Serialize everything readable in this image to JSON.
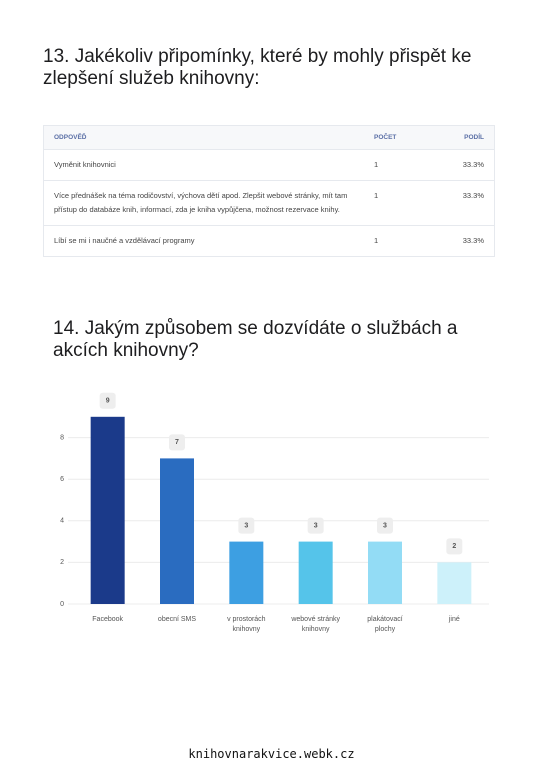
{
  "section13": {
    "title": "13. Jakékoliv připomínky, které by mohly přispět ke zlepšení služeb knihovny:",
    "table": {
      "columns": [
        "ODPOVĚĎ",
        "POČET",
        "PODÍL"
      ],
      "rows": [
        [
          "Vyměnit knihovnici",
          1,
          "33.3%"
        ],
        [
          "Více přednášek na téma rodičovství, výchova dětí apod. Zlepšit webové stránky, mít tam přístup do databáze knih, informací, zda je kniha vypůjčena, možnost rezervace knihy.",
          1,
          "33.3%"
        ],
        [
          "Líbí se mi i naučné a vzdělávací programy",
          1,
          "33.3%"
        ]
      ]
    }
  },
  "chart_data": {
    "type": "bar",
    "title": "14. Jakým způsobem se dozvídáte o službách a akcích knihovny?",
    "categories": [
      "Facebook",
      "obecní SMS",
      "v prostorách knihovny",
      "webové stránky knihovny",
      "plakátovací plochy",
      "jiné"
    ],
    "values": [
      9,
      7,
      3,
      3,
      3,
      2
    ],
    "colors": [
      "#1b3a8a",
      "#2a6cc0",
      "#3d9fe2",
      "#55c4ea",
      "#93dcf5",
      "#cdf1fa"
    ],
    "ylim": [
      0,
      10
    ],
    "yticks": [
      0,
      2,
      4,
      6,
      8
    ],
    "grid": true
  },
  "footer": "knihovnarakvice.webk.cz"
}
